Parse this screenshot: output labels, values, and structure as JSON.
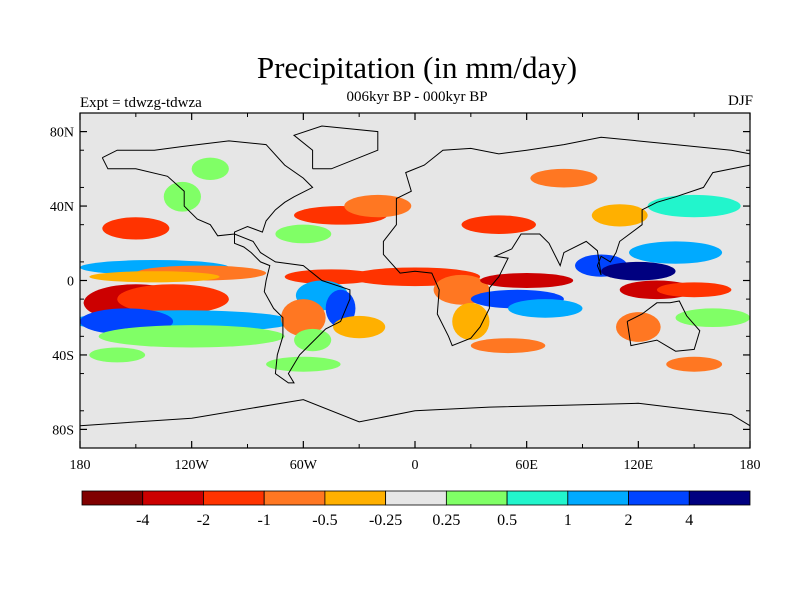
{
  "title": "Precipitation (in mm/day)",
  "subtitle": "006kyr BP - 000kyr BP",
  "experiment": "Expt = tdwzg-tdwza",
  "season": "DJF",
  "map": {
    "projection": "cylindrical-equidistant",
    "lon_range": [
      -180,
      180
    ],
    "lat_range": [
      -90,
      90
    ],
    "lat_ticks": [
      {
        "value": 80,
        "label": "80N"
      },
      {
        "value": 40,
        "label": "40N"
      },
      {
        "value": 0,
        "label": "0"
      },
      {
        "value": -40,
        "label": "40S"
      },
      {
        "value": -80,
        "label": "80S"
      }
    ],
    "lon_ticks": [
      {
        "value": -180,
        "label": "180"
      },
      {
        "value": -120,
        "label": "120W"
      },
      {
        "value": -60,
        "label": "60W"
      },
      {
        "value": 0,
        "label": "0"
      },
      {
        "value": 60,
        "label": "60E"
      },
      {
        "value": 120,
        "label": "120E"
      },
      {
        "value": 180,
        "label": "180"
      }
    ],
    "background_color": "#e6e6e6",
    "coastline_color": "#000000"
  },
  "colorbar": {
    "colors": [
      "#800000",
      "#cc0000",
      "#ff3300",
      "#ff7722",
      "#ffb000",
      "#e6e6e6",
      "#80ff66",
      "#22f5cc",
      "#00aaff",
      "#0044ff",
      "#000080"
    ],
    "labels": [
      "-4",
      "-2",
      "-1",
      "-0.5",
      "-0.25",
      "0.25",
      "0.5",
      "1",
      "2",
      "4"
    ]
  }
}
